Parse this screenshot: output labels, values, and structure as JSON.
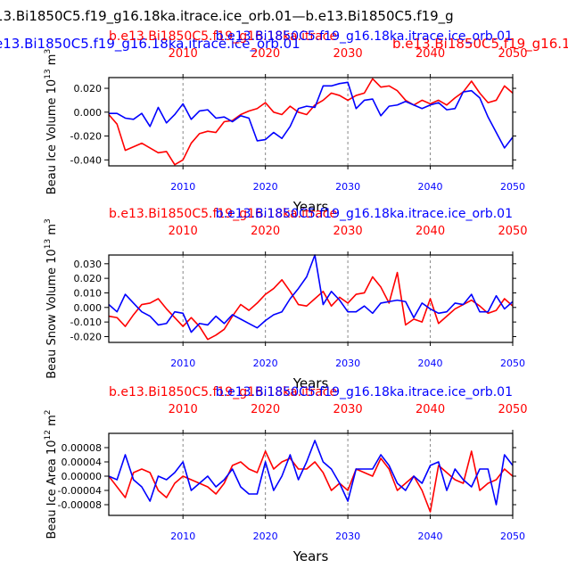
{
  "header": {
    "line1": "13.Bi1850C5.f19_g16.18ka.itrace.ice_orb.01—b.e13.Bi1850C5.f19_g",
    "line2_blue": "e13.Bi1850C5.f19_g16.18ka.itrace.ice_orb.01",
    "line2_red": "b.e13.Bi1850C5.f19_g16.18ka.itrace"
  },
  "colors": {
    "red": "#ff0000",
    "blue": "#0000ff",
    "axis": "#000000",
    "grid": "#888888"
  },
  "chart_data": [
    {
      "type": "line",
      "name": "ice-volume",
      "ylabel": "Beau Ice Volume 10",
      "ylabel_exp": "13",
      "ylabel_unit": " m",
      "ylabel_unit_exp": "3",
      "xlabel": "Years",
      "title_red": "b.e13.Bi1850C5.f19_g16.18ka.itrace",
      "title_blue": "b.e13.Bi1850C5.f19_g16.18ka.itrace.ice_orb.01",
      "xlim": [
        2001,
        2050
      ],
      "ylim": [
        -0.045,
        0.029
      ],
      "yticks": [
        -0.04,
        -0.02,
        0.0,
        0.02
      ],
      "ytick_labels": [
        "-0.040",
        "-0.020",
        "0.000",
        "0.020"
      ],
      "xticks": [
        2010,
        2020,
        2030,
        2040,
        2050
      ],
      "xtick_labels": [
        "2010",
        "2020",
        "2030",
        "2040",
        "2050"
      ],
      "grid_x": [
        2010,
        2020,
        2030,
        2040
      ],
      "series": [
        {
          "name": "b.e13.Bi1850C5.f19_g16.18ka.itrace",
          "color": "red",
          "x": [
            2001,
            2002,
            2003,
            2004,
            2005,
            2006,
            2007,
            2008,
            2009,
            2010,
            2011,
            2012,
            2013,
            2014,
            2015,
            2016,
            2017,
            2018,
            2019,
            2020,
            2021,
            2022,
            2023,
            2024,
            2025,
            2026,
            2027,
            2028,
            2029,
            2030,
            2031,
            2032,
            2033,
            2034,
            2035,
            2036,
            2037,
            2038,
            2039,
            2040,
            2041,
            2042,
            2043,
            2044,
            2045,
            2046,
            2047,
            2048,
            2049,
            2050
          ],
          "values": [
            -0.002,
            -0.01,
            -0.032,
            -0.029,
            -0.026,
            -0.03,
            -0.034,
            -0.033,
            -0.044,
            -0.04,
            -0.026,
            -0.018,
            -0.016,
            -0.017,
            -0.008,
            -0.007,
            -0.002,
            0.001,
            0.003,
            0.008,
            0.0,
            -0.002,
            0.005,
            0.0,
            -0.002,
            0.006,
            0.01,
            0.016,
            0.014,
            0.01,
            0.014,
            0.016,
            0.028,
            0.021,
            0.022,
            0.018,
            0.01,
            0.006,
            0.01,
            0.007,
            0.01,
            0.006,
            0.012,
            0.017,
            0.026,
            0.016,
            0.008,
            0.01,
            0.022,
            0.016
          ]
        },
        {
          "name": "b.e13.Bi1850C5.f19_g16.18ka.itrace.ice_orb.01",
          "color": "blue",
          "x": [
            2001,
            2002,
            2003,
            2004,
            2005,
            2006,
            2007,
            2008,
            2009,
            2010,
            2011,
            2012,
            2013,
            2014,
            2015,
            2016,
            2017,
            2018,
            2019,
            2020,
            2021,
            2022,
            2023,
            2024,
            2025,
            2026,
            2027,
            2028,
            2029,
            2030,
            2031,
            2032,
            2033,
            2034,
            2035,
            2036,
            2037,
            2038,
            2039,
            2040,
            2041,
            2042,
            2043,
            2044,
            2045,
            2046,
            2047,
            2048,
            2049,
            2050
          ],
          "values": [
            -0.001,
            -0.001,
            -0.005,
            -0.006,
            -0.001,
            -0.012,
            0.004,
            -0.009,
            -0.002,
            0.007,
            -0.006,
            0.001,
            0.002,
            -0.005,
            -0.004,
            -0.008,
            -0.003,
            -0.005,
            -0.024,
            -0.023,
            -0.017,
            -0.022,
            -0.012,
            0.003,
            0.005,
            0.004,
            0.022,
            0.022,
            0.024,
            0.025,
            0.003,
            0.01,
            0.011,
            -0.003,
            0.005,
            0.006,
            0.009,
            0.006,
            0.003,
            0.006,
            0.008,
            0.002,
            0.003,
            0.017,
            0.018,
            0.012,
            -0.004,
            -0.017,
            -0.03,
            -0.021
          ]
        }
      ]
    },
    {
      "type": "line",
      "name": "snow-volume",
      "ylabel": "Beau Snow Volume 10",
      "ylabel_exp": "13",
      "ylabel_unit": " m",
      "ylabel_unit_exp": "3",
      "xlabel": "Years",
      "title_red": "b.e13.Bi1850C5.f19_g16.18ka.itrace",
      "title_blue": "b.e13.Bi1850C5.f19_g16.18ka.itrace.ice_orb.01",
      "xlim": [
        2001,
        2050
      ],
      "ylim": [
        -0.024,
        0.036
      ],
      "yticks": [
        -0.02,
        -0.01,
        0.0,
        0.01,
        0.02,
        0.03
      ],
      "ytick_labels": [
        "-0.020",
        "-0.010",
        "0.000",
        "0.010",
        "0.020",
        "0.030"
      ],
      "xticks": [
        2010,
        2020,
        2030,
        2040,
        2050
      ],
      "xtick_labels": [
        "2010",
        "2020",
        "2030",
        "2040",
        "2050"
      ],
      "grid_x": [
        2010,
        2020,
        2030,
        2040
      ],
      "series": [
        {
          "name": "b.e13.Bi1850C5.f19_g16.18ka.itrace",
          "color": "red",
          "x": [
            2001,
            2002,
            2003,
            2004,
            2005,
            2006,
            2007,
            2008,
            2009,
            2010,
            2011,
            2012,
            2013,
            2014,
            2015,
            2016,
            2017,
            2018,
            2019,
            2020,
            2021,
            2022,
            2023,
            2024,
            2025,
            2026,
            2027,
            2028,
            2029,
            2030,
            2031,
            2032,
            2033,
            2034,
            2035,
            2036,
            2037,
            2038,
            2039,
            2040,
            2041,
            2042,
            2043,
            2044,
            2045,
            2046,
            2047,
            2048,
            2049,
            2050
          ],
          "values": [
            -0.006,
            -0.007,
            -0.013,
            -0.005,
            0.002,
            0.003,
            0.006,
            -0.001,
            -0.007,
            -0.013,
            -0.007,
            -0.013,
            -0.022,
            -0.019,
            -0.015,
            -0.006,
            0.002,
            -0.002,
            0.003,
            0.009,
            0.013,
            0.019,
            0.011,
            0.002,
            0.001,
            0.006,
            0.011,
            0.001,
            0.007,
            0.003,
            0.009,
            0.01,
            0.021,
            0.014,
            0.003,
            0.024,
            -0.012,
            -0.008,
            -0.01,
            0.006,
            -0.011,
            -0.006,
            -0.001,
            0.002,
            0.005,
            0.001,
            -0.004,
            -0.002,
            0.006,
            0.001
          ]
        },
        {
          "name": "b.e13.Bi1850C5.f19_g16.18ka.itrace.ice_orb.01",
          "color": "blue",
          "x": [
            2001,
            2002,
            2003,
            2004,
            2005,
            2006,
            2007,
            2008,
            2009,
            2010,
            2011,
            2012,
            2013,
            2014,
            2015,
            2016,
            2017,
            2018,
            2019,
            2020,
            2021,
            2022,
            2023,
            2024,
            2025,
            2026,
            2027,
            2028,
            2029,
            2030,
            2031,
            2032,
            2033,
            2034,
            2035,
            2036,
            2037,
            2038,
            2039,
            2040,
            2041,
            2042,
            2043,
            2044,
            2045,
            2046,
            2047,
            2048,
            2049,
            2050
          ],
          "values": [
            0.002,
            -0.003,
            0.009,
            0.003,
            -0.003,
            -0.006,
            -0.012,
            -0.011,
            -0.003,
            -0.004,
            -0.017,
            -0.011,
            -0.012,
            -0.006,
            -0.011,
            -0.005,
            -0.008,
            -0.011,
            -0.014,
            -0.009,
            -0.005,
            -0.003,
            0.006,
            0.013,
            0.021,
            0.036,
            0.002,
            0.011,
            0.005,
            -0.003,
            -0.003,
            0.001,
            -0.004,
            0.003,
            0.004,
            0.005,
            0.004,
            -0.007,
            0.003,
            -0.001,
            -0.004,
            -0.003,
            0.003,
            0.002,
            0.009,
            -0.003,
            -0.003,
            0.008,
            -0.001,
            0.004
          ]
        }
      ]
    },
    {
      "type": "line",
      "name": "ice-area",
      "ylabel": "Beau Ice Area 10",
      "ylabel_exp": "12",
      "ylabel_unit": " m",
      "ylabel_unit_exp": "2",
      "xlabel": "Years",
      "title_red": "b.e13.Bi1850C5.f19_g16.18ka.itrace",
      "title_blue": "b.e13.Bi1850C5.f19_g16.18ka.itrace.ice_orb.01",
      "xlim": [
        2001,
        2050
      ],
      "ylim": [
        -0.00011,
        0.00012
      ],
      "yticks": [
        -8e-05,
        -4e-05,
        0.0,
        4e-05,
        8e-05
      ],
      "ytick_labels": [
        "-0.00008",
        "-0.00004",
        "0.00000",
        "0.00004",
        "0.00008"
      ],
      "xticks": [
        2010,
        2020,
        2030,
        2040,
        2050
      ],
      "xtick_labels": [
        "2010",
        "2020",
        "2030",
        "2040",
        "2050"
      ],
      "grid_x": [
        2010,
        2020,
        2030,
        2040
      ],
      "series": [
        {
          "name": "b.e13.Bi1850C5.f19_g16.18ka.itrace",
          "color": "red",
          "x": [
            2001,
            2002,
            2003,
            2004,
            2005,
            2006,
            2007,
            2008,
            2009,
            2010,
            2011,
            2012,
            2013,
            2014,
            2015,
            2016,
            2017,
            2018,
            2019,
            2020,
            2021,
            2022,
            2023,
            2024,
            2025,
            2026,
            2027,
            2028,
            2029,
            2030,
            2031,
            2032,
            2033,
            2034,
            2035,
            2036,
            2037,
            2038,
            2039,
            2040,
            2041,
            2042,
            2043,
            2044,
            2045,
            2046,
            2047,
            2048,
            2049,
            2050
          ],
          "values": [
            0.0,
            -3e-05,
            -6e-05,
            1e-05,
            2e-05,
            1e-05,
            -4e-05,
            -6e-05,
            -2e-05,
            0.0,
            -1e-05,
            -2e-05,
            -3e-05,
            -5e-05,
            -2e-05,
            3e-05,
            4e-05,
            2e-05,
            1e-05,
            7e-05,
            2e-05,
            4e-05,
            5e-05,
            2e-05,
            2e-05,
            4e-05,
            1e-05,
            -4e-05,
            -2e-05,
            -4e-05,
            2e-05,
            1e-05,
            0.0,
            5e-05,
            2e-05,
            -4e-05,
            -2e-05,
            0.0,
            -4e-05,
            -0.0001,
            3e-05,
            1e-05,
            -1e-05,
            -2e-05,
            7e-05,
            -4e-05,
            -2e-05,
            -1e-05,
            2e-05,
            0.0
          ]
        },
        {
          "name": "b.e13.Bi1850C5.f19_g16.18ka.itrace.ice_orb.01",
          "color": "blue",
          "x": [
            2001,
            2002,
            2003,
            2004,
            2005,
            2006,
            2007,
            2008,
            2009,
            2010,
            2011,
            2012,
            2013,
            2014,
            2015,
            2016,
            2017,
            2018,
            2019,
            2020,
            2021,
            2022,
            2023,
            2024,
            2025,
            2026,
            2027,
            2028,
            2029,
            2030,
            2031,
            2032,
            2033,
            2034,
            2035,
            2036,
            2037,
            2038,
            2039,
            2040,
            2041,
            2042,
            2043,
            2044,
            2045,
            2046,
            2047,
            2048,
            2049,
            2050
          ],
          "values": [
            0.0,
            -1e-05,
            6e-05,
            -1e-05,
            -3e-05,
            -7e-05,
            0.0,
            -1e-05,
            1e-05,
            4e-05,
            -4e-05,
            -2e-05,
            0.0,
            -3e-05,
            -1e-05,
            2e-05,
            -3e-05,
            -5e-05,
            -5e-05,
            4e-05,
            -4e-05,
            0.0,
            6e-05,
            -1e-05,
            4e-05,
            0.0001,
            4e-05,
            2e-05,
            -2e-05,
            -7e-05,
            2e-05,
            2e-05,
            2e-05,
            6e-05,
            3e-05,
            -2e-05,
            -4e-05,
            0.0,
            -2e-05,
            3e-05,
            4e-05,
            -4e-05,
            2e-05,
            -1e-05,
            -3e-05,
            2e-05,
            2e-05,
            -8e-05,
            6e-05,
            3e-05
          ]
        }
      ]
    }
  ]
}
